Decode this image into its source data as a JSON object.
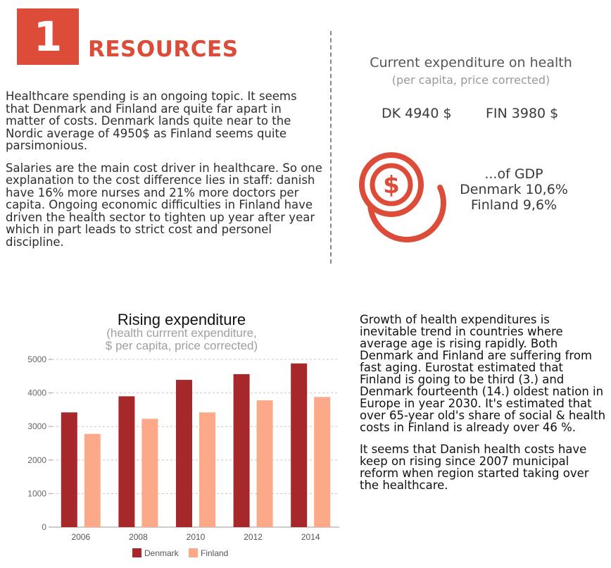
{
  "section": {
    "number": "1",
    "title": "RESOURCES"
  },
  "intro": {
    "p1": "Healthcare spending is an ongoing topic. It seems that Denmark and Finland are quite far apart in matter of costs. Denmark lands quite near to the Nordic average of 4950$ as Finland seems quite parsimonious.",
    "p2": "Salaries are the main cost driver in healthcare. So one explanation to the cost difference lies in staff: danish have 16% more nurses and 21% more doctors per capita. Ongoing economic difficulties in Finland have driven the health sector to tighten up year after year which in part leads to strict cost and personel discipline."
  },
  "expenditure": {
    "title": "Current expenditure on health",
    "subtitle": "(per capita, price corrected)",
    "denmark": "DK 4940 $",
    "finland": "FIN 3980 $",
    "icon": "coins-dollar-icon",
    "accent": "#dd4b39"
  },
  "gdp": {
    "line1": "...of GDP",
    "line2": "Denmark 10,6%",
    "line3": "Finland 9,6%"
  },
  "chart_data": {
    "type": "bar",
    "title": "Rising expenditure",
    "subtitle_line1": "(health currrent expenditure,",
    "subtitle_line2": "$ per capita, price corrected)",
    "categories": [
      "2006",
      "2008",
      "2010",
      "2012",
      "2014"
    ],
    "series": [
      {
        "name": "Denmark",
        "color": "#a6282b",
        "values": [
          3420,
          3900,
          4390,
          4560,
          4880
        ]
      },
      {
        "name": "Finland",
        "color": "#fca989",
        "values": [
          2780,
          3230,
          3420,
          3780,
          3880
        ]
      }
    ],
    "ylim": [
      0,
      5000
    ],
    "yticks": [
      0,
      1000,
      2000,
      3000,
      4000,
      5000
    ],
    "grid": true,
    "legend": "bottom"
  },
  "right": {
    "p1": "Growth of health expenditures is inevitable trend in countries where average age is rising rapidly. Both Denmark and Finland are suffering from fast aging. Eurostat estimated that Finland is going to be third (3.) and Denmark fourteenth (14.) oldest nation in Europe in year 2030. It's estimated that over 65-year old's share of social & health costs in Finland is already over 46 %.",
    "p2": "It seems that Danish health costs have keep on rising since 2007 municipal reform when region started taking over the healthcare."
  }
}
